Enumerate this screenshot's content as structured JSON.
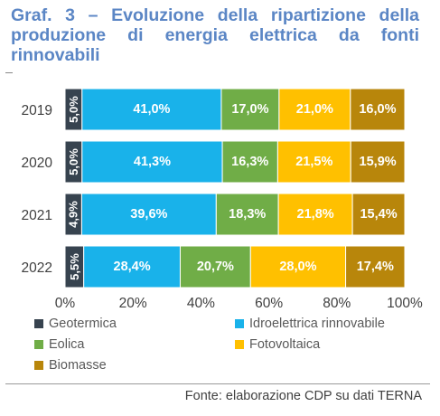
{
  "title": "Graf. 3 – Evoluzione della ripartizione della produzione di energia elettrica da fonti rinnovabili",
  "source": "Fonte: elaborazione CDP su dati TERNA",
  "chart_data": {
    "type": "bar",
    "orientation": "horizontal",
    "stacked": true,
    "categories": [
      "2019",
      "2020",
      "2021",
      "2022"
    ],
    "series": [
      {
        "name": "Geotermica",
        "color": "#37434f",
        "values": [
          5.0,
          5.0,
          4.9,
          5.5
        ],
        "labels": [
          "5,0%",
          "5,0%",
          "4,9%",
          "5,5%"
        ]
      },
      {
        "name": "Idroelettrica rinnovabile",
        "color": "#19b2ea",
        "values": [
          41.0,
          41.3,
          39.6,
          28.4
        ],
        "labels": [
          "41,0%",
          "41,3%",
          "39,6%",
          "28,4%"
        ]
      },
      {
        "name": "Eolica",
        "color": "#70ad47",
        "values": [
          17.0,
          16.3,
          18.3,
          20.7
        ],
        "labels": [
          "17,0%",
          "16,3%",
          "18,3%",
          "20,7%"
        ]
      },
      {
        "name": "Fotovoltaica",
        "color": "#ffc000",
        "values": [
          21.0,
          21.5,
          21.8,
          28.0
        ],
        "labels": [
          "21,0%",
          "21,5%",
          "21,8%",
          "28,0%"
        ]
      },
      {
        "name": "Biomasse",
        "color": "#b8860b",
        "values": [
          16.0,
          15.9,
          15.4,
          17.4
        ],
        "labels": [
          "16,0%",
          "15,9%",
          "15,4%",
          "17,4%"
        ]
      }
    ],
    "xlim": [
      0,
      100
    ],
    "xticks": [
      "0%",
      "20%",
      "40%",
      "60%",
      "80%",
      "100%"
    ],
    "legend_position": "bottom",
    "grid": false
  }
}
